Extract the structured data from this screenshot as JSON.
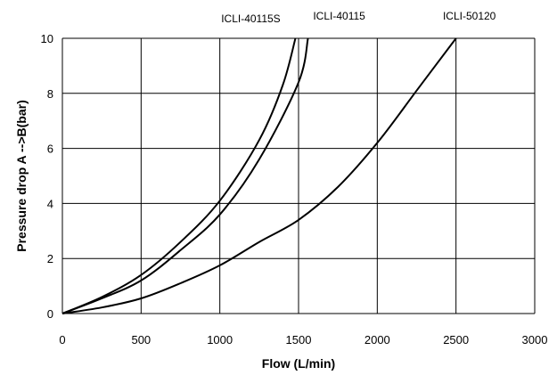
{
  "chart_data": {
    "type": "line",
    "title": "",
    "xlabel": "Flow (L/min)",
    "ylabel": "Pressure drop A -->B(bar)",
    "xlim": [
      0,
      3000
    ],
    "ylim": [
      0,
      10
    ],
    "grid": true,
    "legend": "none",
    "x_ticks": [
      "0",
      "500",
      "1000",
      "1500",
      "2000",
      "2500",
      "3000"
    ],
    "y_ticks": [
      "0",
      "2",
      "4",
      "6",
      "8",
      "10"
    ],
    "series": [
      {
        "name": "ICLI-40115S",
        "x": [
          0,
          250,
          500,
          750,
          1000,
          1250,
          1400,
          1480
        ],
        "y": [
          0,
          0.6,
          1.4,
          2.6,
          4.1,
          6.3,
          8.3,
          10
        ]
      },
      {
        "name": "ICLI-40115",
        "x": [
          0,
          250,
          500,
          750,
          1000,
          1250,
          1500,
          1560
        ],
        "y": [
          0,
          0.55,
          1.2,
          2.3,
          3.6,
          5.6,
          8.4,
          10
        ]
      },
      {
        "name": "ICLI-50120",
        "x": [
          0,
          250,
          500,
          750,
          1000,
          1250,
          1500,
          1750,
          2000,
          2250,
          2500
        ],
        "y": [
          0,
          0.22,
          0.55,
          1.1,
          1.75,
          2.6,
          3.4,
          4.6,
          6.2,
          8.1,
          10
        ]
      }
    ]
  }
}
